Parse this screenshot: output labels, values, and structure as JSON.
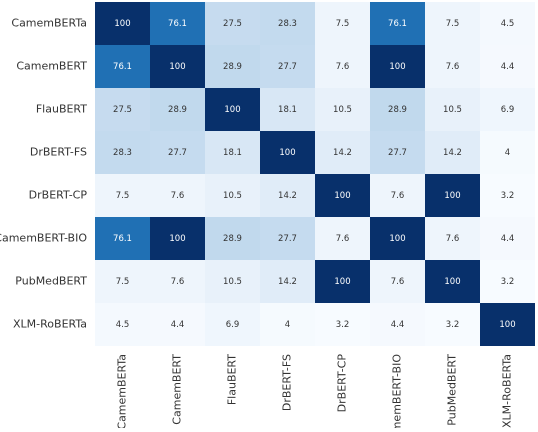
{
  "chart_data": {
    "type": "heatmap",
    "colormap": "Blues",
    "categories": [
      "CamemBERTa",
      "CamemBERT",
      "FlauBERT",
      "DrBERT-FS",
      "DrBERT-CP",
      "CamemBERT-BIO",
      "PubMedBERT",
      "XLM-RoBERTa"
    ],
    "values": [
      [
        100,
        76.1,
        27.5,
        28.3,
        7.5,
        76.1,
        7.5,
        4.5
      ],
      [
        76.1,
        100,
        28.9,
        27.7,
        7.6,
        100,
        7.6,
        4.4
      ],
      [
        27.5,
        28.9,
        100,
        18.1,
        10.5,
        28.9,
        10.5,
        6.9
      ],
      [
        28.3,
        27.7,
        18.1,
        100,
        14.2,
        27.7,
        14.2,
        4
      ],
      [
        7.5,
        7.6,
        10.5,
        14.2,
        100,
        7.6,
        100,
        3.2
      ],
      [
        76.1,
        100,
        28.9,
        27.7,
        7.6,
        100,
        7.6,
        4.4
      ],
      [
        7.5,
        7.6,
        10.5,
        14.2,
        100,
        7.6,
        100,
        3.2
      ],
      [
        4.5,
        4.4,
        6.9,
        4,
        3.2,
        4.4,
        3.2,
        100
      ]
    ]
  }
}
